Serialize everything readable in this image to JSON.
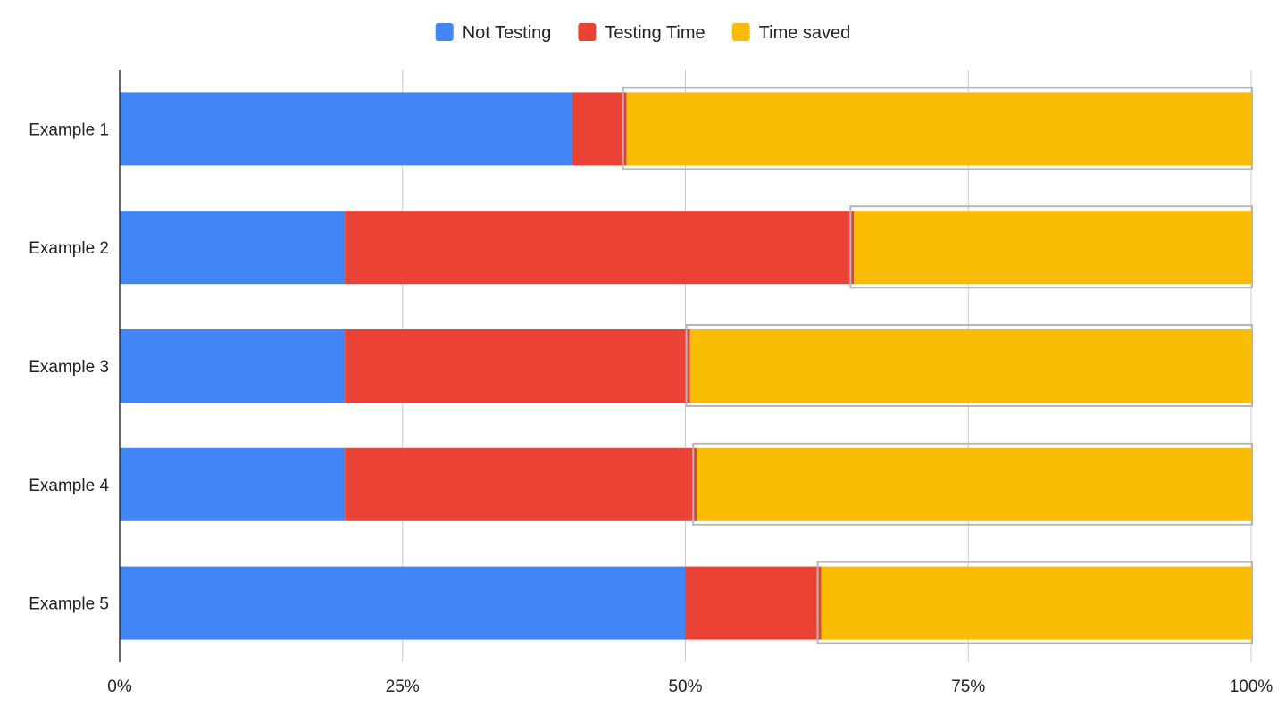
{
  "chart_data": {
    "type": "bar",
    "orientation": "horizontal",
    "stacked": "percent",
    "categories": [
      "Example 1",
      "Example 2",
      "Example 3",
      "Example 4",
      "Example 5"
    ],
    "series": [
      {
        "name": "Not Testing",
        "color": "#4285f4",
        "values": [
          40,
          19.9,
          19.9,
          19.9,
          50
        ]
      },
      {
        "name": "Testing Time",
        "color": "#ea4335",
        "values": [
          4.8,
          45,
          30.5,
          31.1,
          12
        ]
      },
      {
        "name": "Time saved",
        "color": "#fbbc04",
        "values": [
          55.2,
          35.1,
          49.6,
          49,
          38
        ]
      }
    ],
    "x_ticks": [
      "0%",
      "25%",
      "50%",
      "75%",
      "100%"
    ],
    "xlim": [
      0,
      100
    ],
    "grid": true,
    "legend_position": "top-center",
    "title": "",
    "xlabel": "",
    "ylabel": "",
    "highlight_outline_color": "#b7b7b7"
  }
}
